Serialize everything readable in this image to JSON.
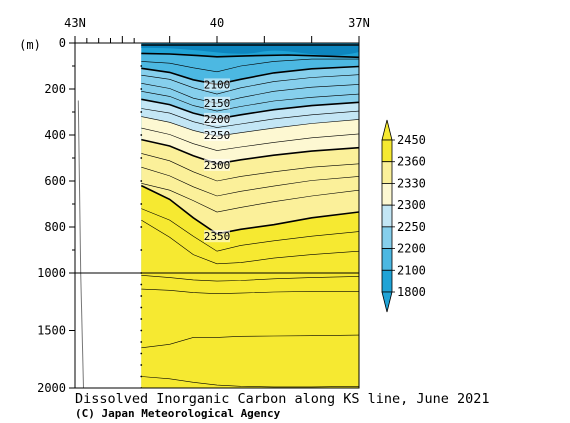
{
  "chart_data": {
    "type": "heatmap",
    "title": "Dissolved Inorganic Carbon along KS line, June 2021",
    "credit": "(C) Japan Meteorological Agency",
    "xlabel": "",
    "ylabel": "(m)",
    "x_axis": {
      "ticks": [
        "43N",
        "40",
        "37N"
      ],
      "tick_values": [
        43,
        40,
        37
      ],
      "range": [
        43,
        37
      ]
    },
    "y_axis": {
      "ticks": [
        "0",
        "200",
        "400",
        "600",
        "800",
        "1000",
        "1500",
        "2000"
      ],
      "tick_values": [
        0,
        200,
        400,
        600,
        800,
        1000,
        1500,
        2000
      ],
      "range": [
        0,
        2000
      ],
      "scale": "piecewise-linear",
      "break_depth": 1000
    },
    "colorbar": {
      "labels": [
        "2450",
        "2360",
        "2330",
        "2300",
        "2250",
        "2200",
        "2100",
        "1800"
      ],
      "levels": [
        1800,
        2100,
        2200,
        2250,
        2300,
        2330,
        2360,
        2450
      ],
      "colors": {
        "lt2100": "#1fa3d6",
        "2100_2200": "#4cb8e2",
        "2200_2250": "#86cfec",
        "2250_2300": "#c3e6f5",
        "2300_2330": "#fdf8d2",
        "2330_2360": "#fbf09a",
        "ge2360": "#f6e931"
      }
    },
    "contour_labels": [
      {
        "text": "2100",
        "lat": 40.0,
        "depth": 180
      },
      {
        "text": "2150",
        "lat": 40.0,
        "depth": 260
      },
      {
        "text": "2200",
        "lat": 40.0,
        "depth": 330
      },
      {
        "text": "2250",
        "lat": 40.0,
        "depth": 400
      },
      {
        "text": "2300",
        "lat": 40.0,
        "depth": 530
      },
      {
        "text": "2350",
        "lat": 40.0,
        "depth": 840
      }
    ],
    "data_region": {
      "lat_start": 41.6,
      "lat_end": 37.0
    },
    "contours": [
      {
        "level": 2000,
        "bold": true,
        "pts": [
          [
            41.6,
            45
          ],
          [
            41.0,
            48
          ],
          [
            40.4,
            55
          ],
          [
            40.0,
            60
          ],
          [
            39.4,
            56
          ],
          [
            38.5,
            52
          ],
          [
            37.6,
            58
          ],
          [
            37.0,
            62
          ]
        ]
      },
      {
        "level": 2050,
        "bold": false,
        "pts": [
          [
            41.6,
            80
          ],
          [
            41.0,
            88
          ],
          [
            40.5,
            108
          ],
          [
            40.0,
            125
          ],
          [
            39.5,
            100
          ],
          [
            38.8,
            80
          ],
          [
            38.0,
            70
          ],
          [
            37.0,
            70
          ]
        ]
      },
      {
        "level": 2100,
        "bold": true,
        "pts": [
          [
            41.6,
            110
          ],
          [
            41.0,
            128
          ],
          [
            40.5,
            160
          ],
          [
            40.0,
            180
          ],
          [
            39.5,
            158
          ],
          [
            38.8,
            130
          ],
          [
            38.0,
            112
          ],
          [
            37.0,
            102
          ]
        ]
      },
      {
        "level": 2125,
        "bold": false,
        "pts": [
          [
            41.6,
            140
          ],
          [
            41.0,
            158
          ],
          [
            40.5,
            195
          ],
          [
            40.0,
            222
          ],
          [
            39.5,
            195
          ],
          [
            38.8,
            168
          ],
          [
            38.0,
            150
          ],
          [
            37.0,
            138
          ]
        ]
      },
      {
        "level": 2150,
        "bold": false,
        "pts": [
          [
            41.6,
            175
          ],
          [
            41.0,
            198
          ],
          [
            40.5,
            240
          ],
          [
            40.0,
            262
          ],
          [
            39.5,
            238
          ],
          [
            38.8,
            210
          ],
          [
            38.0,
            192
          ],
          [
            37.0,
            180
          ]
        ]
      },
      {
        "level": 2175,
        "bold": false,
        "pts": [
          [
            41.6,
            210
          ],
          [
            41.0,
            232
          ],
          [
            40.5,
            272
          ],
          [
            40.0,
            296
          ],
          [
            39.5,
            276
          ],
          [
            38.8,
            252
          ],
          [
            38.0,
            236
          ],
          [
            37.0,
            222
          ]
        ]
      },
      {
        "level": 2200,
        "bold": true,
        "pts": [
          [
            41.6,
            245
          ],
          [
            41.0,
            268
          ],
          [
            40.5,
            305
          ],
          [
            40.0,
            330
          ],
          [
            39.5,
            312
          ],
          [
            38.8,
            290
          ],
          [
            38.0,
            272
          ],
          [
            37.0,
            258
          ]
        ]
      },
      {
        "level": 2225,
        "bold": false,
        "pts": [
          [
            41.6,
            285
          ],
          [
            41.0,
            305
          ],
          [
            40.5,
            342
          ],
          [
            40.0,
            368
          ],
          [
            39.5,
            352
          ],
          [
            38.8,
            330
          ],
          [
            38.0,
            312
          ],
          [
            37.0,
            296
          ]
        ]
      },
      {
        "level": 2250,
        "bold": false,
        "pts": [
          [
            41.6,
            320
          ],
          [
            41.0,
            345
          ],
          [
            40.5,
            380
          ],
          [
            40.0,
            405
          ],
          [
            39.5,
            390
          ],
          [
            38.8,
            370
          ],
          [
            38.0,
            350
          ],
          [
            37.0,
            332
          ]
        ]
      },
      {
        "level": 2275,
        "bold": false,
        "pts": [
          [
            41.6,
            370
          ],
          [
            41.0,
            398
          ],
          [
            40.5,
            438
          ],
          [
            40.0,
            468
          ],
          [
            39.5,
            452
          ],
          [
            38.8,
            432
          ],
          [
            38.0,
            412
          ],
          [
            37.0,
            395
          ]
        ]
      },
      {
        "level": 2300,
        "bold": true,
        "pts": [
          [
            41.6,
            420
          ],
          [
            41.0,
            448
          ],
          [
            40.5,
            490
          ],
          [
            40.0,
            525
          ],
          [
            39.5,
            508
          ],
          [
            38.8,
            488
          ],
          [
            38.0,
            470
          ],
          [
            37.0,
            455
          ]
        ]
      },
      {
        "level": 2320,
        "bold": false,
        "pts": [
          [
            41.6,
            480
          ],
          [
            41.0,
            512
          ],
          [
            40.5,
            560
          ],
          [
            40.0,
            600
          ],
          [
            39.5,
            580
          ],
          [
            38.8,
            560
          ],
          [
            38.0,
            540
          ],
          [
            37.0,
            525
          ]
        ]
      },
      {
        "level": 2330,
        "bold": false,
        "pts": [
          [
            41.6,
            540
          ],
          [
            41.0,
            578
          ],
          [
            40.5,
            625
          ],
          [
            40.0,
            665
          ],
          [
            39.5,
            645
          ],
          [
            38.8,
            622
          ],
          [
            38.0,
            598
          ],
          [
            37.0,
            580
          ]
        ]
      },
      {
        "level": 2340,
        "bold": false,
        "pts": [
          [
            41.6,
            610
          ],
          [
            41.0,
            640
          ],
          [
            40.5,
            685
          ],
          [
            40.0,
            735
          ],
          [
            39.5,
            715
          ],
          [
            38.8,
            690
          ],
          [
            38.0,
            665
          ],
          [
            37.0,
            640
          ]
        ]
      },
      {
        "level": 2350,
        "bold": true,
        "pts": [
          [
            41.6,
            620
          ],
          [
            41.0,
            680
          ],
          [
            40.5,
            760
          ],
          [
            40.0,
            830
          ],
          [
            39.5,
            810
          ],
          [
            38.8,
            790
          ],
          [
            38.0,
            760
          ],
          [
            37.0,
            735
          ]
        ]
      },
      {
        "level": 2355,
        "bold": false,
        "pts": [
          [
            41.6,
            720
          ],
          [
            41.0,
            770
          ],
          [
            40.5,
            840
          ],
          [
            40.0,
            905
          ],
          [
            39.5,
            880
          ],
          [
            38.8,
            860
          ],
          [
            38.0,
            840
          ],
          [
            37.0,
            820
          ]
        ]
      },
      {
        "level": 2360,
        "bold": false,
        "pts": [
          [
            41.6,
            770
          ],
          [
            41.0,
            845
          ],
          [
            40.5,
            920
          ],
          [
            40.0,
            960
          ],
          [
            39.5,
            955
          ],
          [
            38.8,
            935
          ],
          [
            38.0,
            920
          ],
          [
            37.0,
            905
          ]
        ]
      },
      {
        "level": 2362,
        "bold": false,
        "pts": [
          [
            41.6,
            1020
          ],
          [
            41.0,
            1040
          ],
          [
            40.5,
            1060
          ],
          [
            40.0,
            1070
          ],
          [
            39.5,
            1065
          ],
          [
            38.8,
            1050
          ],
          [
            38.0,
            1040
          ],
          [
            37.0,
            1030
          ]
        ]
      },
      {
        "level": 2365,
        "bold": false,
        "pts": [
          [
            41.6,
            1140
          ],
          [
            41.0,
            1150
          ],
          [
            40.5,
            1170
          ],
          [
            40.0,
            1180
          ],
          [
            39.5,
            1175
          ],
          [
            38.8,
            1165
          ],
          [
            38.0,
            1160
          ],
          [
            37.0,
            1160
          ]
        ]
      },
      {
        "level": 2368,
        "bold": false,
        "pts": [
          [
            41.6,
            1650
          ],
          [
            41.0,
            1620
          ],
          [
            40.5,
            1560
          ],
          [
            40.0,
            1560
          ],
          [
            39.5,
            1550
          ],
          [
            38.8,
            1548
          ],
          [
            38.0,
            1545
          ],
          [
            37.0,
            1540
          ]
        ]
      },
      {
        "level": 2370,
        "bold": false,
        "pts": [
          [
            41.6,
            1900
          ],
          [
            41.0,
            1920
          ],
          [
            40.5,
            1950
          ],
          [
            40.0,
            1975
          ],
          [
            39.5,
            1985
          ],
          [
            38.8,
            1990
          ],
          [
            38.0,
            1990
          ],
          [
            37.0,
            1985
          ]
        ]
      }
    ],
    "bathymetry_line": {
      "pts": [
        [
          42.93,
          250
        ],
        [
          42.88,
          1000
        ],
        [
          42.85,
          1500
        ],
        [
          42.82,
          2000
        ]
      ]
    }
  }
}
